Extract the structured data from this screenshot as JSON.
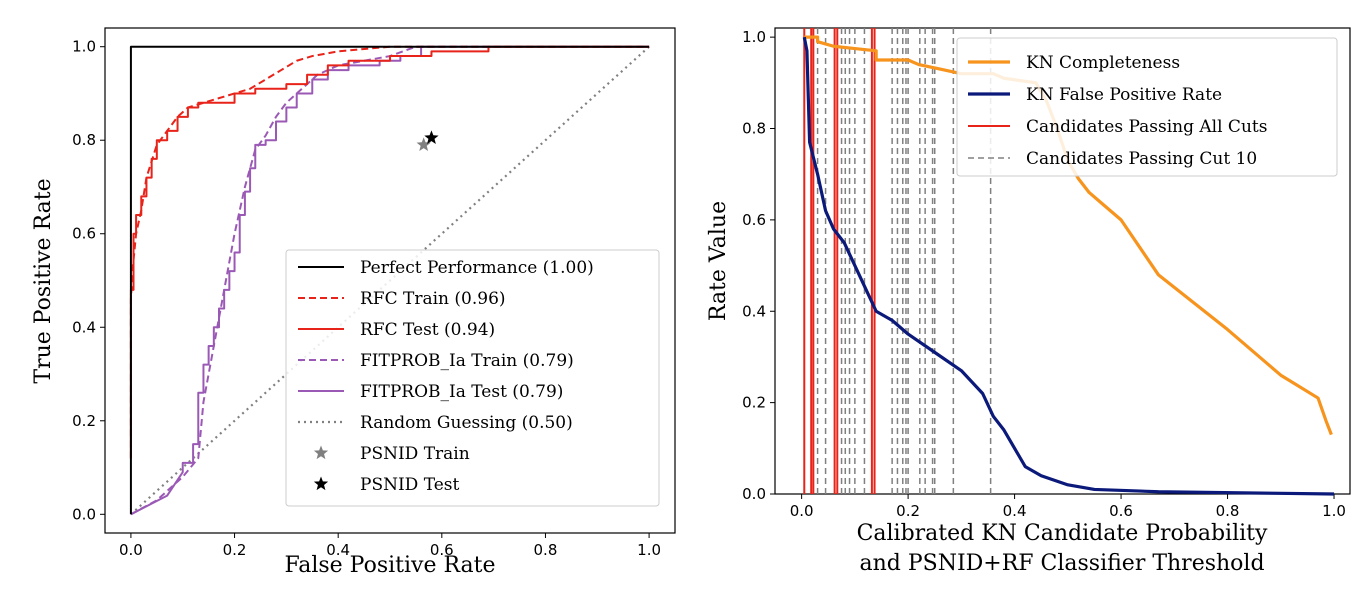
{
  "chart_data": [
    {
      "type": "line",
      "xlabel": "False Positive Rate",
      "ylabel": "True Positive Rate",
      "xlim": [
        -0.05,
        1.05
      ],
      "ylim": [
        -0.04,
        1.04
      ],
      "xticks": [
        0.0,
        0.2,
        0.4,
        0.6,
        0.8,
        1.0
      ],
      "yticks": [
        0.0,
        0.2,
        0.4,
        0.6,
        0.8,
        1.0
      ],
      "xtick_labels": [
        "0.0",
        "0.2",
        "0.4",
        "0.6",
        "0.8",
        "1.0"
      ],
      "ytick_labels": [
        "0.0",
        "0.2",
        "0.4",
        "0.6",
        "0.8",
        "1.0"
      ],
      "legend_position": "lower-right",
      "series": [
        {
          "name": "Perfect Performance (1.00)",
          "color": "#000000",
          "style": "solid",
          "step": false,
          "points": [
            [
              0,
              0
            ],
            [
              0,
              1
            ],
            [
              1,
              1
            ]
          ]
        },
        {
          "name": "RFC Train (0.96)",
          "color": "#e8231a",
          "style": "dashed",
          "step": false,
          "points": [
            [
              0,
              0.12
            ],
            [
              0,
              0.46
            ],
            [
              0.003,
              0.52
            ],
            [
              0.01,
              0.6
            ],
            [
              0.02,
              0.65
            ],
            [
              0.03,
              0.72
            ],
            [
              0.05,
              0.79
            ],
            [
              0.07,
              0.82
            ],
            [
              0.09,
              0.85
            ],
            [
              0.11,
              0.87
            ],
            [
              0.14,
              0.88
            ],
            [
              0.17,
              0.89
            ],
            [
              0.2,
              0.9
            ],
            [
              0.23,
              0.91
            ],
            [
              0.26,
              0.93
            ],
            [
              0.29,
              0.95
            ],
            [
              0.32,
              0.97
            ],
            [
              0.35,
              0.98
            ],
            [
              0.4,
              0.99
            ],
            [
              0.45,
              0.995
            ],
            [
              0.5,
              1.0
            ],
            [
              1.0,
              1.0
            ]
          ]
        },
        {
          "name": "RFC Test (0.94)",
          "color": "#e8231a",
          "style": "solid",
          "step": true,
          "points": [
            [
              0,
              0.12
            ],
            [
              0,
              0.48
            ],
            [
              0.005,
              0.48
            ],
            [
              0.005,
              0.6
            ],
            [
              0.01,
              0.6
            ],
            [
              0.01,
              0.64
            ],
            [
              0.02,
              0.64
            ],
            [
              0.02,
              0.68
            ],
            [
              0.03,
              0.68
            ],
            [
              0.03,
              0.72
            ],
            [
              0.04,
              0.72
            ],
            [
              0.04,
              0.76
            ],
            [
              0.05,
              0.76
            ],
            [
              0.05,
              0.8
            ],
            [
              0.07,
              0.8
            ],
            [
              0.07,
              0.82
            ],
            [
              0.09,
              0.82
            ],
            [
              0.09,
              0.85
            ],
            [
              0.11,
              0.85
            ],
            [
              0.11,
              0.87
            ],
            [
              0.13,
              0.87
            ],
            [
              0.13,
              0.88
            ],
            [
              0.2,
              0.88
            ],
            [
              0.2,
              0.9
            ],
            [
              0.24,
              0.9
            ],
            [
              0.24,
              0.91
            ],
            [
              0.3,
              0.91
            ],
            [
              0.3,
              0.92
            ],
            [
              0.34,
              0.92
            ],
            [
              0.34,
              0.94
            ],
            [
              0.38,
              0.94
            ],
            [
              0.38,
              0.96
            ],
            [
              0.42,
              0.96
            ],
            [
              0.42,
              0.97
            ],
            [
              0.5,
              0.97
            ],
            [
              0.5,
              0.98
            ],
            [
              0.58,
              0.98
            ],
            [
              0.58,
              0.99
            ],
            [
              0.69,
              0.99
            ],
            [
              0.69,
              1.0
            ],
            [
              1.0,
              1.0
            ]
          ]
        },
        {
          "name": "FITPROB_Ia Train (0.79)",
          "color": "#9b59b6",
          "style": "dashed",
          "step": false,
          "points": [
            [
              0,
              0
            ],
            [
              0.05,
              0.03
            ],
            [
              0.1,
              0.08
            ],
            [
              0.13,
              0.12
            ],
            [
              0.14,
              0.24
            ],
            [
              0.16,
              0.36
            ],
            [
              0.18,
              0.48
            ],
            [
              0.2,
              0.6
            ],
            [
              0.22,
              0.7
            ],
            [
              0.24,
              0.78
            ],
            [
              0.26,
              0.81
            ],
            [
              0.28,
              0.85
            ],
            [
              0.3,
              0.88
            ],
            [
              0.33,
              0.91
            ],
            [
              0.36,
              0.94
            ],
            [
              0.4,
              0.96
            ],
            [
              0.45,
              0.97
            ],
            [
              0.5,
              0.98
            ],
            [
              0.55,
              1.0
            ],
            [
              1.0,
              1.0
            ]
          ]
        },
        {
          "name": "FITPROB_Ia Test (0.79)",
          "color": "#9b59b6",
          "style": "solid",
          "step": true,
          "points": [
            [
              0,
              0
            ],
            [
              0.07,
              0.04
            ],
            [
              0.1,
              0.09
            ],
            [
              0.1,
              0.11
            ],
            [
              0.12,
              0.11
            ],
            [
              0.12,
              0.15
            ],
            [
              0.13,
              0.15
            ],
            [
              0.13,
              0.26
            ],
            [
              0.14,
              0.26
            ],
            [
              0.14,
              0.32
            ],
            [
              0.15,
              0.32
            ],
            [
              0.15,
              0.36
            ],
            [
              0.16,
              0.36
            ],
            [
              0.16,
              0.4
            ],
            [
              0.17,
              0.4
            ],
            [
              0.17,
              0.44
            ],
            [
              0.18,
              0.44
            ],
            [
              0.18,
              0.48
            ],
            [
              0.19,
              0.48
            ],
            [
              0.19,
              0.52
            ],
            [
              0.2,
              0.52
            ],
            [
              0.2,
              0.56
            ],
            [
              0.21,
              0.56
            ],
            [
              0.21,
              0.64
            ],
            [
              0.22,
              0.64
            ],
            [
              0.22,
              0.69
            ],
            [
              0.23,
              0.69
            ],
            [
              0.23,
              0.74
            ],
            [
              0.24,
              0.74
            ],
            [
              0.24,
              0.79
            ],
            [
              0.26,
              0.79
            ],
            [
              0.26,
              0.8
            ],
            [
              0.28,
              0.8
            ],
            [
              0.28,
              0.84
            ],
            [
              0.3,
              0.84
            ],
            [
              0.3,
              0.87
            ],
            [
              0.32,
              0.87
            ],
            [
              0.32,
              0.9
            ],
            [
              0.35,
              0.9
            ],
            [
              0.35,
              0.93
            ],
            [
              0.38,
              0.93
            ],
            [
              0.38,
              0.95
            ],
            [
              0.42,
              0.95
            ],
            [
              0.42,
              0.96
            ],
            [
              0.48,
              0.96
            ],
            [
              0.48,
              0.97
            ],
            [
              0.52,
              0.97
            ],
            [
              0.52,
              0.98
            ],
            [
              0.56,
              0.98
            ],
            [
              0.56,
              1.0
            ],
            [
              1.0,
              1.0
            ]
          ]
        },
        {
          "name": "Random Guessing (0.50)",
          "color": "#808080",
          "style": "dotted",
          "step": false,
          "points": [
            [
              0,
              0
            ],
            [
              1,
              1
            ]
          ]
        }
      ],
      "markers": [
        {
          "name": "PSNID Train",
          "color": "#808080",
          "x": 0.565,
          "y": 0.79
        },
        {
          "name": "PSNID Test",
          "color": "#000000",
          "x": 0.58,
          "y": 0.805
        }
      ]
    },
    {
      "type": "line",
      "xlabel": "Calibrated KN Candidate Probability",
      "xlabel2": "and PSNID+RF Classifier Threshold",
      "ylabel": "Rate Value",
      "xlim": [
        -0.05,
        1.03
      ],
      "ylim": [
        0.0,
        1.02
      ],
      "xticks": [
        0.0,
        0.2,
        0.4,
        0.6,
        0.8,
        1.0
      ],
      "yticks": [
        0.0,
        0.2,
        0.4,
        0.6,
        0.8,
        1.0
      ],
      "xtick_labels": [
        "0.0",
        "0.2",
        "0.4",
        "0.6",
        "0.8",
        "1.0"
      ],
      "ytick_labels": [
        "0.0",
        "0.2",
        "0.4",
        "0.6",
        "0.8",
        "1.0"
      ],
      "legend_position": "top-right",
      "series": [
        {
          "name": "KN Completeness",
          "color": "#f7941d",
          "style": "solid",
          "points": [
            [
              0.005,
              1.0
            ],
            [
              0.03,
              1.0
            ],
            [
              0.03,
              0.99
            ],
            [
              0.06,
              0.98
            ],
            [
              0.1,
              0.975
            ],
            [
              0.14,
              0.97
            ],
            [
              0.14,
              0.95
            ],
            [
              0.2,
              0.95
            ],
            [
              0.22,
              0.94
            ],
            [
              0.26,
              0.93
            ],
            [
              0.3,
              0.92
            ],
            [
              0.36,
              0.92
            ],
            [
              0.38,
              0.91
            ],
            [
              0.44,
              0.9
            ],
            [
              0.46,
              0.86
            ],
            [
              0.48,
              0.8
            ],
            [
              0.5,
              0.73
            ],
            [
              0.52,
              0.69
            ],
            [
              0.54,
              0.66
            ],
            [
              0.56,
              0.64
            ],
            [
              0.6,
              0.6
            ],
            [
              0.67,
              0.48
            ],
            [
              0.8,
              0.36
            ],
            [
              0.9,
              0.26
            ],
            [
              0.97,
              0.21
            ],
            [
              0.985,
              0.16
            ],
            [
              0.995,
              0.13
            ]
          ]
        },
        {
          "name": "KN False Positive Rate",
          "color": "#0b1a7a",
          "style": "solid",
          "points": [
            [
              0.005,
              1.0
            ],
            [
              0.01,
              0.97
            ],
            [
              0.015,
              0.77
            ],
            [
              0.03,
              0.7
            ],
            [
              0.045,
              0.62
            ],
            [
              0.06,
              0.58
            ],
            [
              0.08,
              0.55
            ],
            [
              0.1,
              0.5
            ],
            [
              0.12,
              0.45
            ],
            [
              0.14,
              0.4
            ],
            [
              0.17,
              0.38
            ],
            [
              0.2,
              0.35
            ],
            [
              0.25,
              0.31
            ],
            [
              0.3,
              0.27
            ],
            [
              0.34,
              0.22
            ],
            [
              0.36,
              0.17
            ],
            [
              0.38,
              0.14
            ],
            [
              0.4,
              0.1
            ],
            [
              0.42,
              0.06
            ],
            [
              0.45,
              0.04
            ],
            [
              0.5,
              0.02
            ],
            [
              0.55,
              0.01
            ],
            [
              0.67,
              0.005
            ],
            [
              1.0,
              0.0
            ]
          ]
        }
      ],
      "red_lines": {
        "name": "Candidates Passing All Cuts",
        "color": "#e8231a",
        "x": [
          0.005,
          0.018,
          0.022,
          0.062,
          0.067,
          0.132,
          0.137
        ]
      },
      "dashed_lines": {
        "name": "Candidates Passing Cut 10",
        "color": "#808080",
        "x": [
          0.03,
          0.045,
          0.075,
          0.082,
          0.09,
          0.1,
          0.118,
          0.17,
          0.18,
          0.19,
          0.196,
          0.2,
          0.222,
          0.232,
          0.246,
          0.25,
          0.285,
          0.355
        ]
      }
    }
  ]
}
